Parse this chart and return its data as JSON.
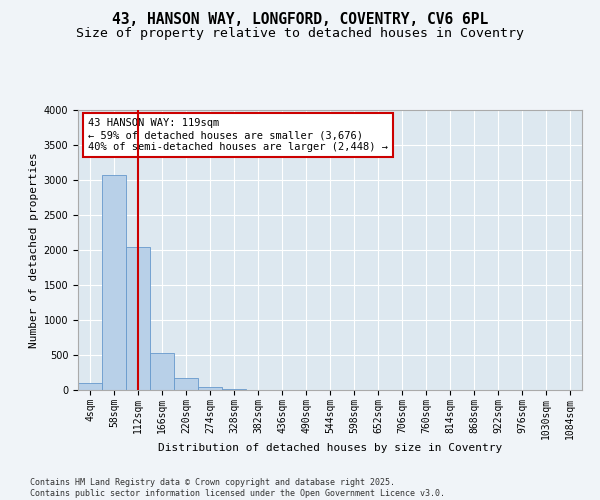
{
  "title1": "43, HANSON WAY, LONGFORD, COVENTRY, CV6 6PL",
  "title2": "Size of property relative to detached houses in Coventry",
  "xlabel": "Distribution of detached houses by size in Coventry",
  "ylabel": "Number of detached properties",
  "bar_color": "#b8d0e8",
  "bar_edge_color": "#6699cc",
  "background_color": "#dde8f0",
  "grid_color": "#ffffff",
  "fig_background": "#f0f4f8",
  "categories": [
    "4sqm",
    "58sqm",
    "112sqm",
    "166sqm",
    "220sqm",
    "274sqm",
    "328sqm",
    "382sqm",
    "436sqm",
    "490sqm",
    "544sqm",
    "598sqm",
    "652sqm",
    "706sqm",
    "760sqm",
    "814sqm",
    "868sqm",
    "922sqm",
    "976sqm",
    "1030sqm",
    "1084sqm"
  ],
  "values": [
    100,
    3070,
    2050,
    530,
    170,
    50,
    10,
    5,
    2,
    2,
    0,
    0,
    0,
    0,
    0,
    0,
    0,
    0,
    0,
    0,
    0
  ],
  "ylim": [
    0,
    4000
  ],
  "yticks": [
    0,
    500,
    1000,
    1500,
    2000,
    2500,
    3000,
    3500,
    4000
  ],
  "vline_x": 2,
  "vline_color": "#cc0000",
  "annotation_title": "43 HANSON WAY: 119sqm",
  "annotation_line1": "← 59% of detached houses are smaller (3,676)",
  "annotation_line2": "40% of semi-detached houses are larger (2,448) →",
  "annotation_box_color": "#cc0000",
  "footer1": "Contains HM Land Registry data © Crown copyright and database right 2025.",
  "footer2": "Contains public sector information licensed under the Open Government Licence v3.0.",
  "title1_fontsize": 10.5,
  "title2_fontsize": 9.5,
  "axis_label_fontsize": 8,
  "tick_fontsize": 7,
  "annotation_fontsize": 7.5,
  "footer_fontsize": 6
}
